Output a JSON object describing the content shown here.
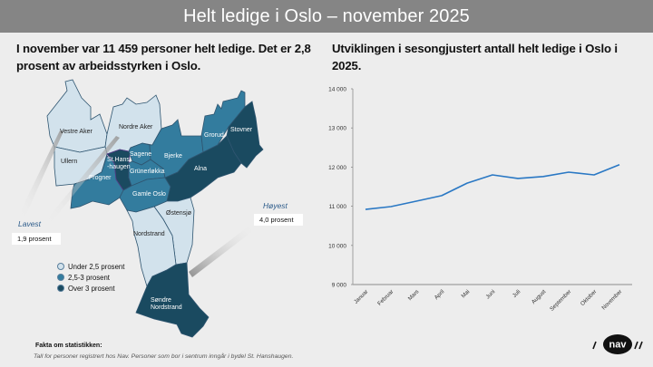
{
  "header": {
    "title": "Helt ledige i Oslo – november 2025"
  },
  "left_panel": {
    "heading": "I november var 11 459 personer helt ledige. Det er 2,8 prosent av arbeidsstyrken i Oslo.",
    "districts": [
      {
        "name": "Vestre Aker",
        "category": "Under 2,5 prosent"
      },
      {
        "name": "Nordre Aker",
        "category": "Under 2,5 prosent"
      },
      {
        "name": "Ullern",
        "category": "Under 2,5 prosent"
      },
      {
        "name": "Frogner",
        "category": "2,5-3 prosent"
      },
      {
        "name": "St.Hans-haugen",
        "label_line1": "St.Hans",
        "label_line2": "-haugen",
        "category": "Over 3 prosent"
      },
      {
        "name": "Sagene",
        "category": "2,5-3 prosent"
      },
      {
        "name": "Grünerløkka",
        "category": "2,5-3 prosent"
      },
      {
        "name": "Gamle Oslo",
        "category": "2,5-3 prosent"
      },
      {
        "name": "Bjerke",
        "category": "2,5-3 prosent"
      },
      {
        "name": "Grorud",
        "category": "2,5-3 prosent"
      },
      {
        "name": "Stovner",
        "category": "Over 3 prosent"
      },
      {
        "name": "Alna",
        "category": "Over 3 prosent"
      },
      {
        "name": "Østensjø",
        "category": "Under 2,5 prosent"
      },
      {
        "name": "Nordstrand",
        "category": "Under 2,5 prosent"
      },
      {
        "name": "Søndre Nordstrand",
        "label_line1": "Søndre",
        "label_line2": "Nordstrand",
        "category": "Over 3 prosent"
      }
    ],
    "lowest": {
      "title": "Lavest",
      "value": "1,9 prosent"
    },
    "highest": {
      "title": "Høyest",
      "value": "4,0 prosent"
    },
    "legend": [
      {
        "label": "Under 2,5 prosent",
        "color": "#d2e2ec"
      },
      {
        "label": "2,5-3 prosent",
        "color": "#337c9e"
      },
      {
        "label": "Over 3 prosent",
        "color": "#1a4a60"
      }
    ],
    "facts_title": "Fakta om statistikken:",
    "facts_text": "Tall for personer registrert hos Nav. Personer som bor i sentrum inngår i bydel St. Hanshaugen."
  },
  "right_panel": {
    "heading": "Utviklingen i sesongjustert antall helt ledige i Oslo i 2025."
  },
  "colors": {
    "title_bar": "#858585",
    "background": "#ededed",
    "line": "#2a78c4",
    "low": "#d2e2ec",
    "mid": "#337c9e",
    "high": "#1a4a60",
    "callout_title": "#2c5b8a"
  },
  "chart_data": {
    "type": "line",
    "title": "Utviklingen i sesongjustert antall helt ledige i Oslo i 2025.",
    "xlabel": "",
    "ylabel": "",
    "categories": [
      "Januar",
      "Februar",
      "Mars",
      "April",
      "Mai",
      "Juni",
      "Juli",
      "August",
      "September",
      "Oktober",
      "November"
    ],
    "series": [
      {
        "name": "Sesongjustert antall helt ledige",
        "values": [
          10920,
          10990,
          11130,
          11270,
          11590,
          11800,
          11710,
          11760,
          11870,
          11800,
          12060
        ]
      }
    ],
    "ylim": [
      9000,
      14000
    ],
    "yticks": [
      9000,
      10000,
      11000,
      12000,
      13000,
      14000
    ],
    "ytick_labels": [
      "9 000",
      "10 000",
      "11 000",
      "12 000",
      "13 000",
      "14 000"
    ],
    "grid": false,
    "legend": "none"
  },
  "logo": {
    "text": "nav"
  }
}
